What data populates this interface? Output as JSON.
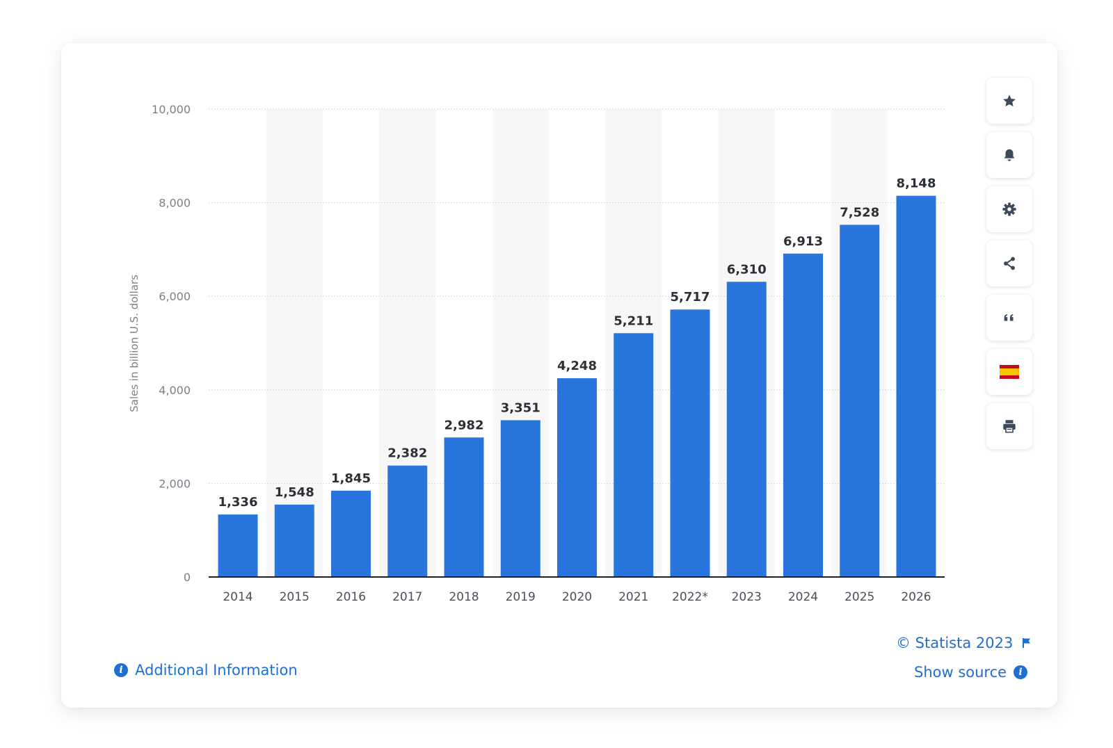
{
  "chart_data": {
    "type": "bar",
    "categories": [
      "2014",
      "2015",
      "2016",
      "2017",
      "2018",
      "2019",
      "2020",
      "2021",
      "2022*",
      "2023",
      "2024",
      "2025",
      "2026"
    ],
    "values": [
      1336,
      1548,
      1845,
      2382,
      2982,
      3351,
      4248,
      5211,
      5717,
      6310,
      6913,
      7528,
      8148
    ],
    "value_labels": [
      "1,336",
      "1,548",
      "1,845",
      "2,382",
      "2,982",
      "3,351",
      "4,248",
      "5,211",
      "5,717",
      "6,310",
      "6,913",
      "7,528",
      "8,148"
    ],
    "ylabel": "Sales in billion U.S. dollars",
    "ylim": [
      0,
      10000
    ],
    "yticks": [
      0,
      2000,
      4000,
      6000,
      8000,
      10000
    ],
    "ytick_labels": [
      "0",
      "2,000",
      "4,000",
      "6,000",
      "8,000",
      "10,000"
    ],
    "grid": true,
    "bar_color": "#2876dd",
    "alt_column_shade": "#f7f7f8"
  },
  "toolbar": {
    "buttons": [
      {
        "name": "favorite-button",
        "icon": "star-icon"
      },
      {
        "name": "notification-button",
        "icon": "bell-icon"
      },
      {
        "name": "settings-button",
        "icon": "gear-icon"
      },
      {
        "name": "share-button",
        "icon": "share-icon"
      },
      {
        "name": "cite-button",
        "icon": "quote-icon"
      },
      {
        "name": "language-button",
        "icon": "spain-flag-icon"
      },
      {
        "name": "print-button",
        "icon": "printer-icon"
      }
    ]
  },
  "footer": {
    "copyright": "© Statista 2023",
    "show_source": "Show source",
    "additional_info": "Additional Information"
  },
  "colors": {
    "accent": "#1f6fd1",
    "icon": "#3c4a5c"
  }
}
